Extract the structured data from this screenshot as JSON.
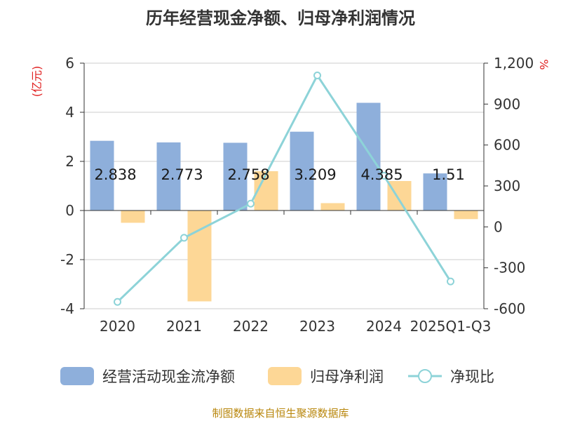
{
  "title": "历年经营现金净额、归母净利润情况",
  "source": "制图数据来自恒生聚源数据库",
  "left_unit": "(亿元)",
  "right_unit": "%",
  "colors": {
    "cash": "#8eafdb",
    "profit": "#fdd796",
    "ratio": "#8dd3d8",
    "unit": "#e02020",
    "source": "#b8860b"
  },
  "chart_data": {
    "type": "bar+line",
    "categories": [
      "2020",
      "2021",
      "2022",
      "2023",
      "2024",
      "2025Q1-Q3"
    ],
    "series": [
      {
        "name": "经营活动现金流净额",
        "axis": "left",
        "type": "bar",
        "values": [
          2.838,
          2.773,
          2.758,
          3.209,
          4.385,
          1.51
        ],
        "labels": [
          "2.838",
          "2.773",
          "2.758",
          "3.209",
          "4.385",
          "1.51"
        ]
      },
      {
        "name": "归母净利润",
        "axis": "left",
        "type": "bar",
        "values": [
          -0.5,
          -3.7,
          1.6,
          0.3,
          1.2,
          -0.35
        ]
      },
      {
        "name": "净现比",
        "axis": "right",
        "type": "line",
        "values": [
          -550,
          -80,
          170,
          1110,
          375,
          -400
        ]
      }
    ],
    "y_left": {
      "min": -4,
      "max": 6,
      "ticks": [
        "-4",
        "-2",
        "0",
        "2",
        "4",
        "6"
      ]
    },
    "y_right": {
      "min": -600,
      "max": 1200,
      "ticks": [
        "-600",
        "-300",
        "0",
        "300",
        "600",
        "900",
        "1,200"
      ]
    },
    "legend": "bottom",
    "grid": true
  }
}
